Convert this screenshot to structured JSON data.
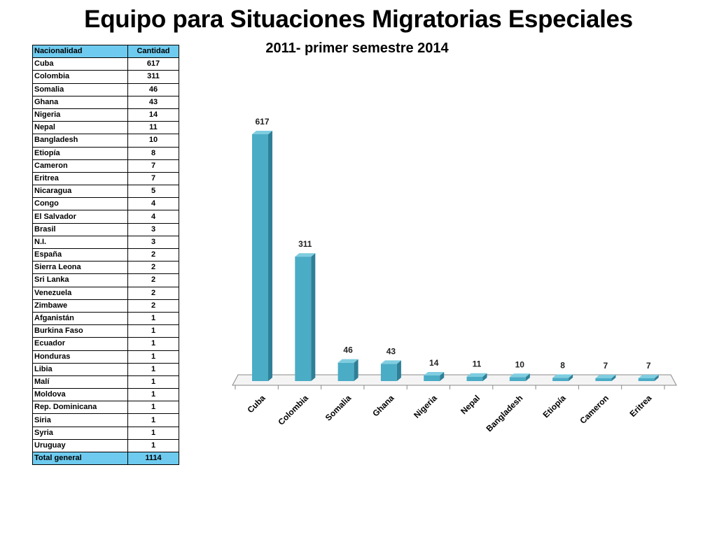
{
  "slide": {
    "title": "Equipo para Situaciones Migratorias Especiales",
    "subtitle": "2011- primer semestre 2014"
  },
  "table": {
    "headers": [
      "Nacionalidad",
      "Cantidad"
    ],
    "rows": [
      [
        "Cuba",
        "617"
      ],
      [
        "Colombia",
        "311"
      ],
      [
        "Somalia",
        "46"
      ],
      [
        "Ghana",
        "43"
      ],
      [
        "Nigeria",
        "14"
      ],
      [
        "Nepal",
        "11"
      ],
      [
        "Bangladesh",
        "10"
      ],
      [
        "Etiopía",
        "8"
      ],
      [
        "Cameron",
        "7"
      ],
      [
        "Eritrea",
        "7"
      ],
      [
        "Nicaragua",
        "5"
      ],
      [
        "Congo",
        "4"
      ],
      [
        "El Salvador",
        "4"
      ],
      [
        "Brasil",
        "3"
      ],
      [
        "N.I.",
        "3"
      ],
      [
        "España",
        "2"
      ],
      [
        "Sierra Leona",
        "2"
      ],
      [
        "Sri Lanka",
        "2"
      ],
      [
        "Venezuela",
        "2"
      ],
      [
        "Zimbawe",
        "2"
      ],
      [
        "Afganistán",
        "1"
      ],
      [
        "Burkina Faso",
        "1"
      ],
      [
        "Ecuador",
        "1"
      ],
      [
        "Honduras",
        "1"
      ],
      [
        "Libia",
        "1"
      ],
      [
        "Malí",
        "1"
      ],
      [
        "Moldova",
        "1"
      ],
      [
        "Rep. Dominicana",
        "1"
      ],
      [
        "Siria",
        "1"
      ],
      [
        "Syria",
        "1"
      ],
      [
        "Uruguay",
        "1"
      ]
    ],
    "total": [
      "Total general",
      "1114"
    ],
    "header_color": "#6ecbef"
  },
  "chart_data": {
    "type": "bar",
    "style": "3d-column",
    "categories": [
      "Cuba",
      "Colombia",
      "Somalia",
      "Ghana",
      "Nigeria",
      "Nepal",
      "Bangladesh",
      "Etiopía",
      "Cameron",
      "Eritrea"
    ],
    "values": [
      617,
      311,
      46,
      43,
      14,
      11,
      10,
      8,
      7,
      7
    ],
    "data_labels": true,
    "grid": false,
    "legend": "none",
    "ylim": [
      0,
      617
    ],
    "bar_color": "#4bacc6",
    "bar_side_color": "#2f7f96",
    "bar_top_color": "#7fcde0"
  }
}
